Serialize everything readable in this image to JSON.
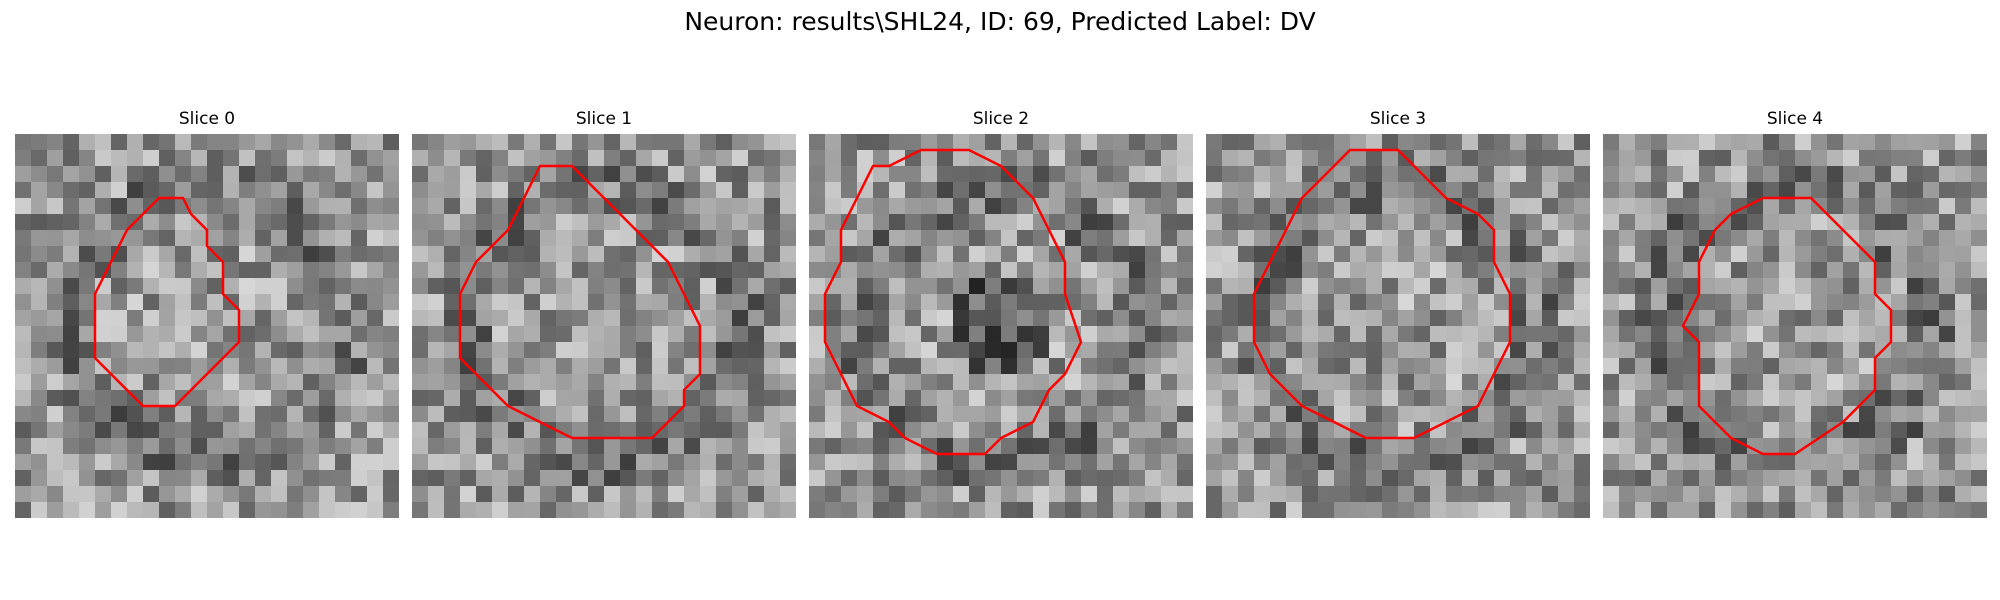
{
  "figure": {
    "title": "Neuron: results\\SHL24, ID: 69, Predicted Label: DV"
  },
  "colors": {
    "contour": "#ff0000"
  },
  "panels": [
    {
      "title": "Slice 0",
      "seed": 11,
      "dark_center": false
    },
    {
      "title": "Slice 1",
      "seed": 23,
      "dark_center": false
    },
    {
      "title": "Slice 2",
      "seed": 37,
      "dark_center": true
    },
    {
      "title": "Slice 3",
      "seed": 53,
      "dark_center": false
    },
    {
      "title": "Slice 4",
      "seed": 71,
      "dark_center": false
    }
  ]
}
